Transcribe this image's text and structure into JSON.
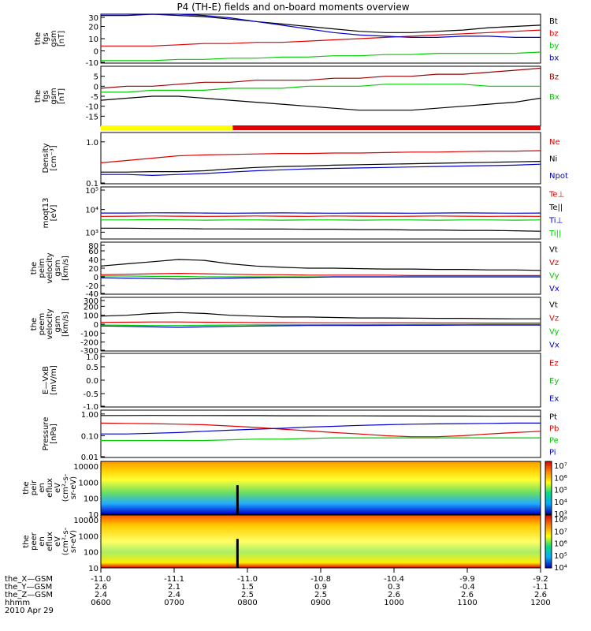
{
  "title": "P4 (TH-E) fields and on-board moments overview",
  "colors": {
    "black": "#000000",
    "red": "#e00000",
    "green": "#00cc00",
    "blue": "#0000cc",
    "yellow": "#ffff00",
    "darkred": "#990000"
  },
  "chart_data": {
    "type": "line",
    "time_range": [
      "0600",
      "1200"
    ],
    "date": "2010 Apr 29",
    "panels": [
      {
        "ylabel": [
          "the",
          "fgs",
          "gsm",
          "[nT]"
        ],
        "ylim": [
          -10,
          30
        ],
        "ticks": [
          "30",
          "20",
          "10",
          "0",
          "-10"
        ],
        "series": [
          {
            "name": "Bt",
            "color": "black",
            "values": [
              29,
              29,
              30,
              29,
              28,
              26,
              24,
              22,
              20,
              18,
              16,
              15,
              15,
              16,
              17,
              19,
              20,
              21
            ]
          },
          {
            "name": "bz",
            "color": "red",
            "values": [
              4,
              4,
              4,
              5,
              6,
              6,
              7,
              7,
              8,
              9,
              10,
              11,
              12,
              13,
              14,
              15,
              16,
              17
            ]
          },
          {
            "name": "by",
            "color": "green",
            "values": [
              -8,
              -8,
              -8,
              -7,
              -7,
              -6,
              -6,
              -5,
              -5,
              -4,
              -4,
              -3,
              -3,
              -2,
              -2,
              -2,
              -2,
              -1
            ]
          },
          {
            "name": "bx",
            "color": "blue",
            "values": [
              30,
              30,
              31,
              30,
              29,
              27,
              24,
              21,
              18,
              15,
              13,
              12,
              11,
              11,
              12,
              12,
              11,
              11
            ]
          }
        ]
      },
      {
        "ylabel": [
          "the",
          "fgs",
          "gsm",
          "[nT]"
        ],
        "ylim": [
          -20,
          10
        ],
        "ticks": [
          "5",
          "0",
          "-5",
          "-10",
          "-15"
        ],
        "series": [
          {
            "name": "Bz",
            "color": "darkred",
            "values": [
              -1,
              0,
              0,
              1,
              2,
              2,
              3,
              3,
              3,
              4,
              4,
              5,
              5,
              6,
              6,
              7,
              8,
              9
            ]
          },
          {
            "name": "Bx",
            "color": "green",
            "values": [
              -3,
              -3,
              -2,
              -2,
              -2,
              -1,
              -1,
              -1,
              0,
              0,
              0,
              1,
              1,
              1,
              1,
              0,
              0,
              0
            ]
          },
          {
            "name": "",
            "color": "black",
            "values": [
              -7,
              -6,
              -5,
              -5,
              -6,
              -7,
              -8,
              -9,
              -10,
              -11,
              -12,
              -12,
              -12,
              -11,
              -10,
              -9,
              -8,
              -6
            ]
          }
        ]
      },
      {
        "ylabel": [
          "Density",
          "[cm⁻³]"
        ],
        "ylim": [
          0.1,
          1.2
        ],
        "ticks": [
          "1.0",
          "0.1"
        ],
        "series": [
          {
            "name": "Ne",
            "color": "red",
            "values": [
              0.55,
              0.6,
              0.65,
              0.7,
              0.72,
              0.73,
              0.74,
              0.75,
              0.75,
              0.76,
              0.76,
              0.77,
              0.78,
              0.78,
              0.79,
              0.8,
              0.8,
              0.81
            ]
          },
          {
            "name": "Ni",
            "color": "black",
            "values": [
              0.35,
              0.35,
              0.36,
              0.36,
              0.38,
              0.42,
              0.45,
              0.47,
              0.48,
              0.5,
              0.51,
              0.52,
              0.53,
              0.54,
              0.55,
              0.56,
              0.57,
              0.58
            ]
          },
          {
            "name": "Npot",
            "color": "blue",
            "values": [
              0.3,
              0.3,
              0.28,
              0.3,
              0.32,
              0.35,
              0.38,
              0.4,
              0.42,
              0.43,
              0.44,
              0.45,
              0.46,
              0.47,
              0.48,
              0.49,
              0.5,
              0.52
            ]
          }
        ]
      },
      {
        "ylabel": [
          "moqt13",
          "[eV]"
        ],
        "ylim": [
          500,
          100000
        ],
        "ticks": [
          "10⁵",
          "10⁴",
          "10³"
        ],
        "series": [
          {
            "name": "Te⊥",
            "color": "red",
            "values": [
              5000,
              5100,
              5200,
              5100,
              5000,
              5100,
              5200,
              5100,
              5000,
              5200,
              5100,
              5000,
              5100,
              5200,
              5100,
              5000,
              5100,
              5000
            ]
          },
          {
            "name": "Te||",
            "color": "black",
            "values": [
              1500,
              1500,
              1450,
              1450,
              1400,
              1400,
              1380,
              1380,
              1350,
              1350,
              1300,
              1300,
              1250,
              1250,
              1200,
              1200,
              1150,
              1100
            ]
          },
          {
            "name": "Ti⊥",
            "color": "blue",
            "values": [
              7000,
              7000,
              7200,
              7100,
              7000,
              6900,
              7000,
              7100,
              7000,
              6900,
              7000,
              7000,
              6900,
              7000,
              7100,
              7000,
              6900,
              7000
            ]
          },
          {
            "name": "Ti||",
            "color": "green",
            "values": [
              3500,
              3500,
              3600,
              3500,
              3400,
              3500,
              3500,
              3400,
              3500,
              3500,
              3400,
              3500,
              3500,
              3400,
              3500,
              3500,
              3400,
              3500
            ]
          }
        ]
      },
      {
        "ylabel": [
          "the",
          "peim",
          "velocity",
          "gsm",
          "[km/s]"
        ],
        "ylim": [
          -40,
          80
        ],
        "ticks": [
          "80",
          "60",
          "40",
          "20",
          "0",
          "-20",
          "-40"
        ],
        "series": [
          {
            "name": "Vt",
            "color": "black",
            "values": [
              25,
              30,
              35,
              40,
              38,
              30,
              25,
              22,
              20,
              20,
              19,
              18,
              18,
              17,
              17,
              16,
              16,
              15
            ]
          },
          {
            "name": "Vz",
            "color": "red",
            "values": [
              5,
              6,
              7,
              8,
              7,
              6,
              5,
              5,
              4,
              4,
              4,
              4,
              3,
              3,
              3,
              3,
              3,
              3
            ]
          },
          {
            "name": "Vy",
            "color": "green",
            "values": [
              2,
              2,
              1,
              1,
              0,
              0,
              0,
              0,
              0,
              0,
              0,
              0,
              0,
              0,
              0,
              0,
              0,
              0
            ]
          },
          {
            "name": "Vx",
            "color": "blue",
            "values": [
              -2,
              -3,
              -4,
              -5,
              -4,
              -3,
              -2,
              -1,
              -1,
              0,
              0,
              0,
              0,
              0,
              0,
              0,
              0,
              0
            ]
          }
        ]
      },
      {
        "ylabel": [
          "the",
          "peem",
          "velocity",
          "gsm",
          "[km/s]"
        ],
        "ylim": [
          -300,
          300
        ],
        "ticks": [
          "300",
          "200",
          "100",
          "0",
          "-100",
          "-200",
          "-300"
        ],
        "series": [
          {
            "name": "Vt",
            "color": "black",
            "values": [
              90,
              100,
              120,
              130,
              120,
              100,
              90,
              80,
              80,
              75,
              70,
              70,
              68,
              65,
              65,
              62,
              60,
              60
            ]
          },
          {
            "name": "Vz",
            "color": "red",
            "values": [
              20,
              22,
              25,
              25,
              22,
              20,
              18,
              17,
              16,
              15,
              15,
              14,
              14,
              13,
              13,
              12,
              12,
              12
            ]
          },
          {
            "name": "Vy",
            "color": "green",
            "values": [
              -10,
              -12,
              -15,
              -15,
              -12,
              -10,
              -8,
              -7,
              -6,
              -5,
              -5,
              -5,
              -4,
              -4,
              -4,
              -3,
              -3,
              -3
            ]
          },
          {
            "name": "Vx",
            "color": "blue",
            "values": [
              -20,
              -25,
              -30,
              -35,
              -30,
              -25,
              -20,
              -18,
              -15,
              -15,
              -14,
              -13,
              -12,
              -12,
              -11,
              -10,
              -10,
              -10
            ]
          }
        ]
      },
      {
        "ylabel": [
          "E—VxB",
          "[mV/m]"
        ],
        "ylim": [
          -1,
          1
        ],
        "ticks": [
          "1.0",
          "0.5",
          "0.0",
          "-0.5",
          "-1.0"
        ],
        "series": [
          {
            "name": "Ez",
            "color": "red",
            "values": []
          },
          {
            "name": "Ey",
            "color": "green",
            "values": []
          },
          {
            "name": "Ex",
            "color": "blue",
            "values": []
          }
        ]
      },
      {
        "ylabel": [
          "Pressure",
          "[nPa]"
        ],
        "ylim": [
          0.01,
          1.5
        ],
        "ticks": [
          "1.00",
          "0.10",
          "0.01"
        ],
        "series": [
          {
            "name": "Pt",
            "color": "black",
            "values": [
              0.85,
              0.85,
              0.86,
              0.85,
              0.85,
              0.84,
              0.84,
              0.83,
              0.83,
              0.82,
              0.82,
              0.81,
              0.81,
              0.8,
              0.8,
              0.79,
              0.79,
              0.78
            ]
          },
          {
            "name": "Pb",
            "color": "red",
            "values": [
              0.38,
              0.37,
              0.36,
              0.34,
              0.32,
              0.28,
              0.24,
              0.2,
              0.17,
              0.14,
              0.12,
              0.1,
              0.09,
              0.09,
              0.1,
              0.12,
              0.14,
              0.16
            ]
          },
          {
            "name": "Pe",
            "color": "green",
            "values": [
              0.06,
              0.06,
              0.06,
              0.06,
              0.06,
              0.065,
              0.07,
              0.07,
              0.075,
              0.08,
              0.08,
              0.08,
              0.08,
              0.08,
              0.08,
              0.08,
              0.08,
              0.08
            ]
          },
          {
            "name": "Pi",
            "color": "blue",
            "values": [
              0.12,
              0.12,
              0.13,
              0.14,
              0.16,
              0.18,
              0.2,
              0.22,
              0.25,
              0.27,
              0.3,
              0.32,
              0.34,
              0.35,
              0.36,
              0.37,
              0.38,
              0.38
            ]
          }
        ]
      }
    ],
    "mode_bar": [
      {
        "from": 0,
        "to": 0.3,
        "color": "yellow"
      },
      {
        "from": 0.3,
        "to": 1,
        "color": "red"
      }
    ],
    "spectrograms": [
      {
        "ylabel": [
          "the",
          "peir",
          "en",
          "eflux",
          "eV",
          "(cm²-s-",
          "sr-eV)"
        ],
        "ylim": [
          10,
          20000
        ],
        "ticks": [
          "10000",
          "1000",
          "100",
          "10"
        ],
        "colorbar": {
          "ticks": [
            "10⁷",
            "10⁶",
            "10⁵",
            "10⁴",
            "10³"
          ]
        }
      },
      {
        "ylabel": [
          "the",
          "peer",
          "en",
          "eflux",
          "eV",
          "(cm²-s-",
          "sr-eV)"
        ],
        "ylim": [
          10,
          20000
        ],
        "ticks": [
          "10000",
          "1000",
          "100",
          "10"
        ],
        "colorbar": {
          "ticks": [
            "10⁸",
            "10⁷",
            "10⁶",
            "10⁵",
            "10⁴"
          ]
        }
      }
    ],
    "x_axis": {
      "row_labels": [
        "the_X—GSM",
        "the_Y—GSM",
        "the_Z—GSM",
        "hhmm",
        "2010 Apr 29"
      ],
      "columns": [
        {
          "x": "-11.0",
          "y": "2.6",
          "z": "2.4",
          "t": "0600"
        },
        {
          "x": "-11.1",
          "y": "2.1",
          "z": "2.4",
          "t": "0700"
        },
        {
          "x": "-11.0",
          "y": "1.5",
          "z": "2.5",
          "t": "0800"
        },
        {
          "x": "-10.8",
          "y": "0.9",
          "z": "2.5",
          "t": "0900"
        },
        {
          "x": "-10.4",
          "y": "0.3",
          "z": "2.6",
          "t": "1000"
        },
        {
          "x": "-9.9",
          "y": "-0.4",
          "z": "2.6",
          "t": "1100"
        },
        {
          "x": "-9.2",
          "y": "-1.1",
          "z": "2.6",
          "t": "1200"
        }
      ]
    }
  }
}
